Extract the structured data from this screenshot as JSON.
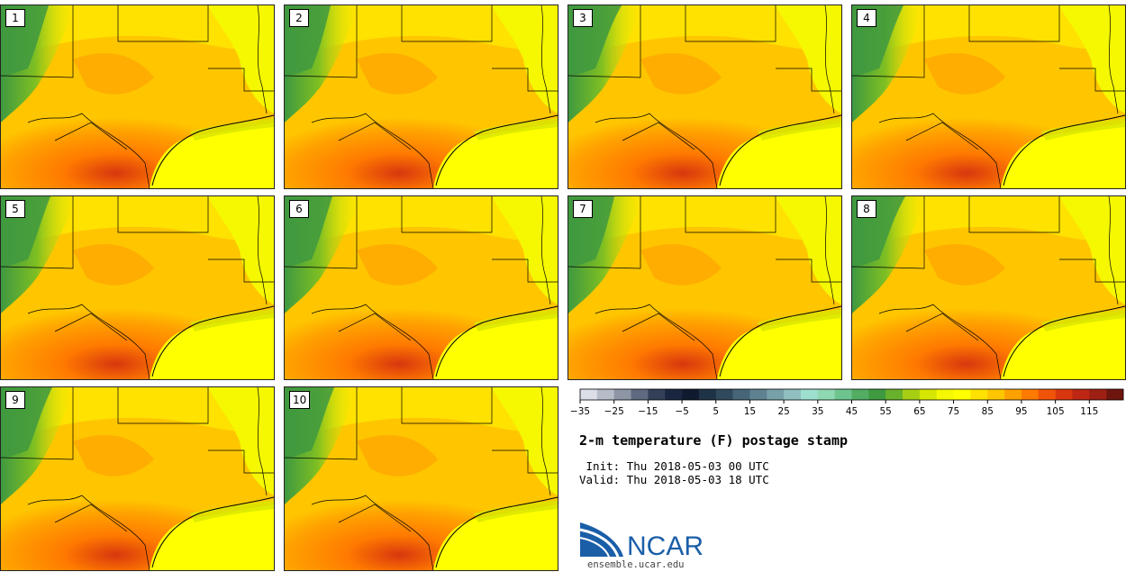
{
  "panels": [
    {
      "label": "1"
    },
    {
      "label": "2"
    },
    {
      "label": "3"
    },
    {
      "label": "4"
    },
    {
      "label": "5"
    },
    {
      "label": "6"
    },
    {
      "label": "7"
    },
    {
      "label": "8"
    },
    {
      "label": "9"
    },
    {
      "label": "10"
    }
  ],
  "colorbar": {
    "colors": [
      "#dcdfe8",
      "#b6bcc8",
      "#8e96a6",
      "#5f6a80",
      "#344058",
      "#1a2640",
      "#0f1a2e",
      "#1f3346",
      "#31495c",
      "#466577",
      "#5e8290",
      "#78a0a8",
      "#8fc0bf",
      "#9ee0cf",
      "#8ed8b2",
      "#6ec48e",
      "#52ad63",
      "#3f9940",
      "#68b12a",
      "#a6cf14",
      "#d7e600",
      "#f5f800",
      "#ffff00",
      "#ffe200",
      "#ffc600",
      "#ffa200",
      "#ff7a00",
      "#f05408",
      "#d8370e",
      "#bd2714",
      "#9e1f13",
      "#6e150d"
    ],
    "tick_labels": [
      "−35",
      "−25",
      "−15",
      "−5",
      "5",
      "15",
      "25",
      "35",
      "45",
      "55",
      "65",
      "75",
      "85",
      "95",
      "105",
      "115"
    ]
  },
  "title": "2-m temperature (F) postage stamp",
  "init": " Init: Thu 2018-05-03 00 UTC",
  "valid": "Valid: Thu 2018-05-03 18 UTC",
  "logo": {
    "text": "NCAR",
    "url": "ensemble.ucar.edu",
    "color": "#1a5ea8"
  }
}
